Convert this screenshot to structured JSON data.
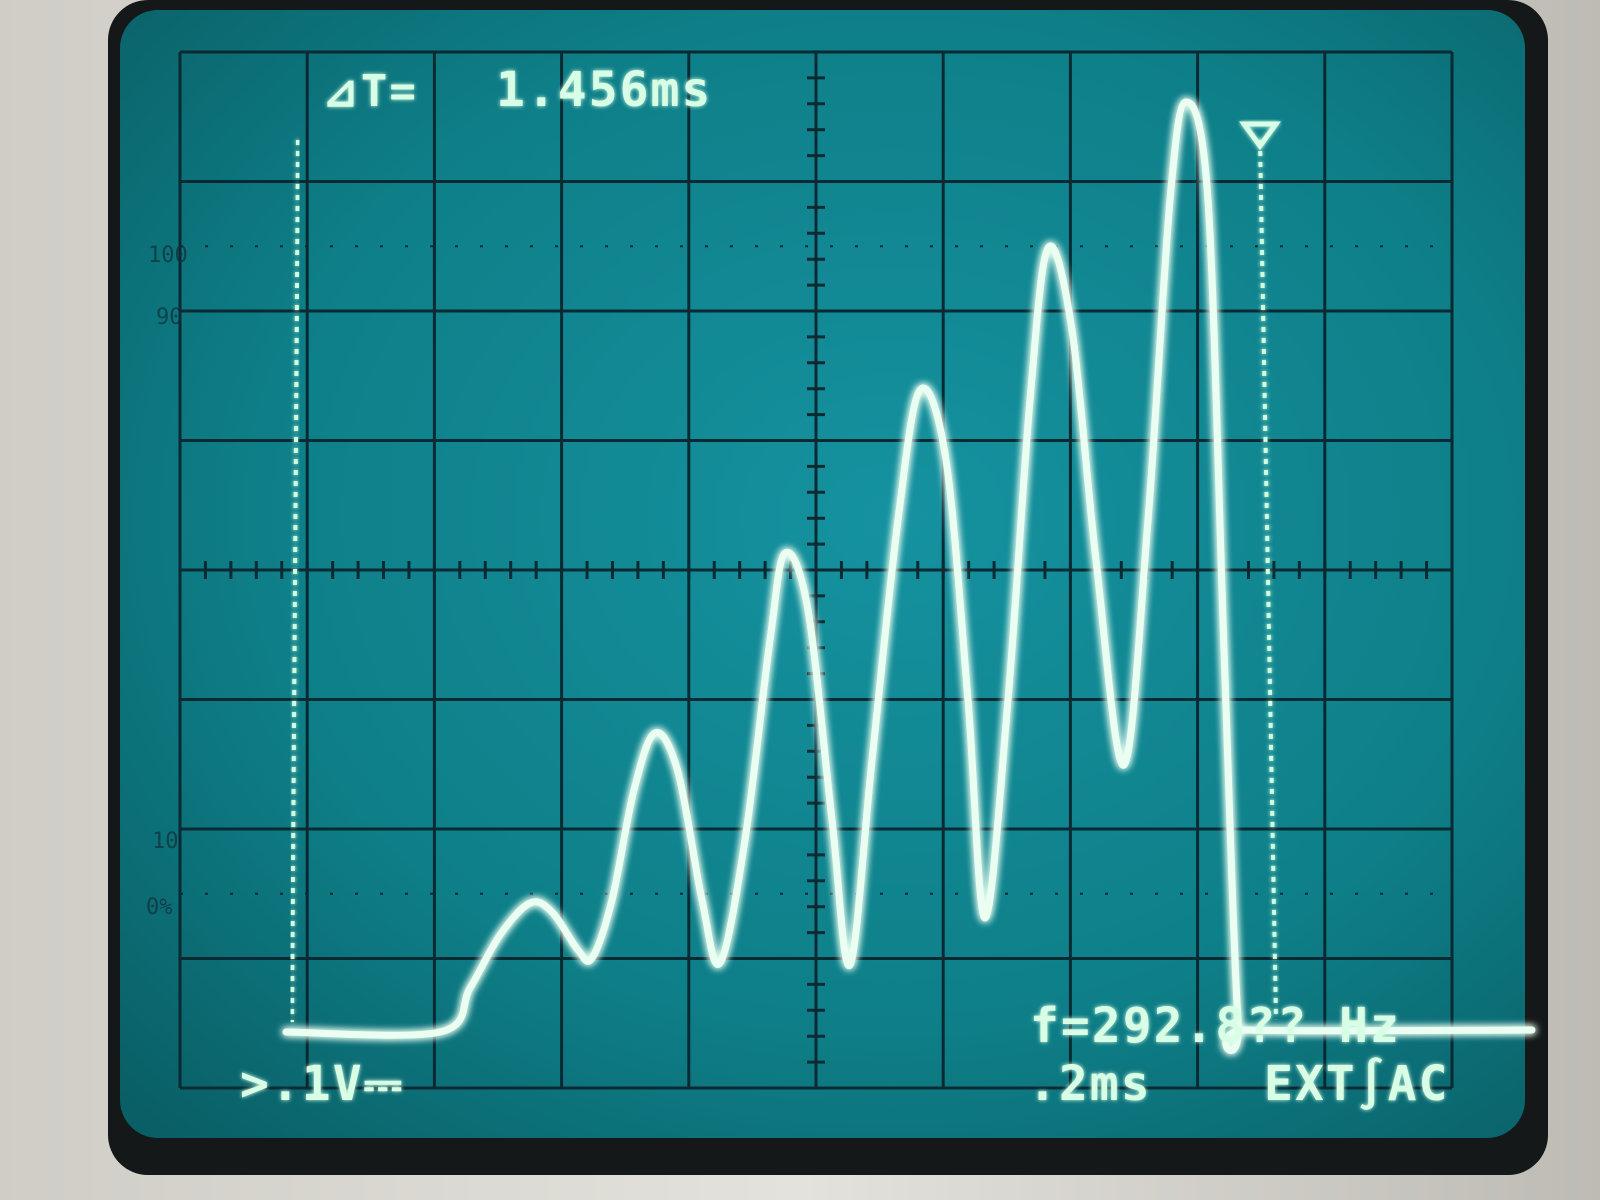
{
  "readouts": {
    "delta_t_label": "⊿T=",
    "delta_t_value": "1.456ms",
    "frequency": "f=292.8?? Hz",
    "volts_per_div": ">.1V⎓",
    "time_per_div": ".2ms",
    "trigger": "EXT∫AC"
  },
  "graticule_labels": {
    "pct_100": "100",
    "pct_90": "90",
    "pct_10": "10",
    "pct_0": "0%"
  },
  "colors": {
    "screen": "#0f7f86",
    "grid": "#0a2a33",
    "trace": "#eafff2",
    "text": "#d8ffe6",
    "bezel": "#121616",
    "case": "#d8d6cf"
  },
  "waveform": {
    "description_type": "growing oscillation burst with cursors",
    "peaks_divisions_above_center": [
      -3.0,
      -1.2,
      0.3,
      1.6,
      2.5,
      3.6
    ],
    "cursor_left_division": -4.0,
    "cursor_right_division": 3.3
  }
}
